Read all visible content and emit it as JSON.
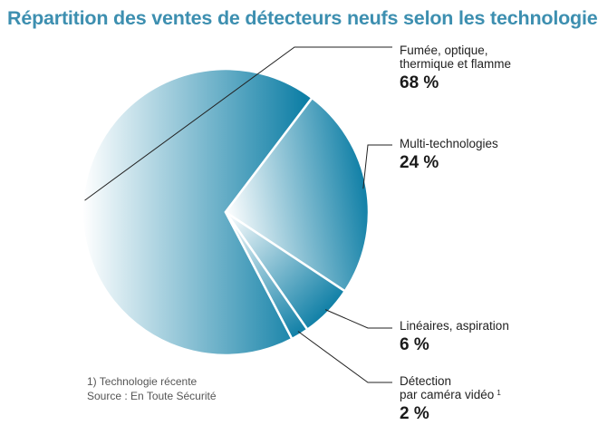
{
  "title": "Répartition des ventes de détecteurs neufs selon les technologies",
  "colors": {
    "title": "#3d8fb0",
    "slice_dark": "#0f7fa6",
    "slice_light": "#ffffff",
    "slice_edge": "#ffffff",
    "leader": "#222222"
  },
  "chart_data": {
    "type": "pie",
    "title": "Répartition des ventes de détecteurs neufs selon les technologies",
    "slices": [
      {
        "name_lines": [
          "Fumée, optique,",
          "thermique et flamme"
        ],
        "value": 68,
        "label": "68 %"
      },
      {
        "name_lines": [
          "Multi-technologies"
        ],
        "value": 24,
        "label": "24 %"
      },
      {
        "name_lines": [
          "Linéaires, aspiration"
        ],
        "value": 6,
        "label": "6 %"
      },
      {
        "name_lines": [
          "Détection",
          "par caméra vidéo"
        ],
        "value": 2,
        "label": "2 %",
        "footnote": "1"
      }
    ],
    "unit": "%"
  },
  "notes": {
    "footnote": "1) Technologie récente",
    "source": "Source : En Toute Sécurité"
  }
}
